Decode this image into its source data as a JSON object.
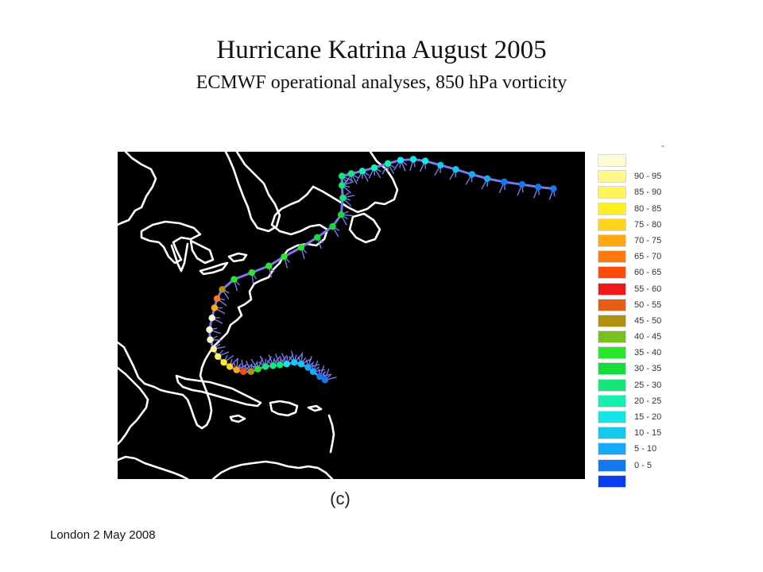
{
  "slide": {
    "title": "Hurricane Katrina August 2005",
    "subtitle": "ECMWF operational analyses, 850 hPa vorticity",
    "panel_label": "(c)",
    "footer": "London 2 May 2008"
  },
  "legend": {
    "top_mark": "-",
    "items": [
      {
        "label": "",
        "color": "#fffbd2"
      },
      {
        "label": "90 - 95",
        "color": "#fff88a"
      },
      {
        "label": "85 - 90",
        "color": "#fff45a"
      },
      {
        "label": "80 - 85",
        "color": "#ffee22"
      },
      {
        "label": "75 - 80",
        "color": "#ffd21c"
      },
      {
        "label": "70 - 75",
        "color": "#ffa812"
      },
      {
        "label": "65 - 70",
        "color": "#ff7a0e"
      },
      {
        "label": "60 - 65",
        "color": "#ff4a0c"
      },
      {
        "label": "55 - 60",
        "color": "#f21818"
      },
      {
        "label": "50 - 55",
        "color": "#e56014"
      },
      {
        "label": "45 - 50",
        "color": "#b09010"
      },
      {
        "label": "40 - 45",
        "color": "#78c020"
      },
      {
        "label": "35 - 40",
        "color": "#28e628"
      },
      {
        "label": "30 - 35",
        "color": "#14dc3c"
      },
      {
        "label": "25 - 30",
        "color": "#14e678"
      },
      {
        "label": "20 - 25",
        "color": "#14f0b4"
      },
      {
        "label": "15 - 20",
        "color": "#14e6e6"
      },
      {
        "label": "10 - 15",
        "color": "#14c8f0"
      },
      {
        "label": "5 - 10",
        "color": "#14aaf5"
      },
      {
        "label": "0 - 5",
        "color": "#1478f0"
      },
      {
        "label": "",
        "color": "#0a3cf0"
      }
    ]
  },
  "map": {
    "background": "#000000",
    "coastline_color": "#ffffff",
    "track_line_color": "#7878f0",
    "track": [
      {
        "lon": -75.6,
        "lat": 23.8,
        "color": "#1478f0"
      },
      {
        "lon": -76.2,
        "lat": 24.2,
        "color": "#1478f0"
      },
      {
        "lon": -77.0,
        "lat": 24.8,
        "color": "#14aaf5"
      },
      {
        "lon": -77.6,
        "lat": 25.3,
        "color": "#14aaf5"
      },
      {
        "lon": -78.4,
        "lat": 25.7,
        "color": "#14c8f0"
      },
      {
        "lon": -79.2,
        "lat": 25.9,
        "color": "#14c8f0"
      },
      {
        "lon": -80.1,
        "lat": 25.7,
        "color": "#14e6e6"
      },
      {
        "lon": -80.9,
        "lat": 25.6,
        "color": "#14e678"
      },
      {
        "lon": -81.7,
        "lat": 25.5,
        "color": "#14e678"
      },
      {
        "lon": -82.6,
        "lat": 25.4,
        "color": "#14e678"
      },
      {
        "lon": -83.5,
        "lat": 25.1,
        "color": "#28e628"
      },
      {
        "lon": -84.3,
        "lat": 24.8,
        "color": "#b09010"
      },
      {
        "lon": -85.2,
        "lat": 24.8,
        "color": "#ff4a0c"
      },
      {
        "lon": -86.0,
        "lat": 25.0,
        "color": "#ffa812"
      },
      {
        "lon": -86.8,
        "lat": 25.4,
        "color": "#ffd21c"
      },
      {
        "lon": -87.5,
        "lat": 25.9,
        "color": "#ffee22"
      },
      {
        "lon": -88.2,
        "lat": 26.6,
        "color": "#fff45a"
      },
      {
        "lon": -88.7,
        "lat": 27.5,
        "color": "#fff88a"
      },
      {
        "lon": -89.1,
        "lat": 28.6,
        "color": "#fffbd2"
      },
      {
        "lon": -89.2,
        "lat": 29.8,
        "color": "#fffbd2"
      },
      {
        "lon": -88.9,
        "lat": 31.2,
        "color": "#fffbd2"
      },
      {
        "lon": -88.6,
        "lat": 32.4,
        "color": "#ffa812"
      },
      {
        "lon": -88.3,
        "lat": 33.5,
        "color": "#ff7a0e"
      },
      {
        "lon": -87.7,
        "lat": 34.6,
        "color": "#b09010"
      },
      {
        "lon": -86.3,
        "lat": 35.8,
        "color": "#28e628"
      },
      {
        "lon": -84.2,
        "lat": 36.6,
        "color": "#28e628"
      },
      {
        "lon": -82.2,
        "lat": 37.4,
        "color": "#28e628"
      },
      {
        "lon": -80.4,
        "lat": 38.5,
        "color": "#28e628"
      },
      {
        "lon": -78.4,
        "lat": 39.6,
        "color": "#28e628"
      },
      {
        "lon": -76.5,
        "lat": 40.8,
        "color": "#14dc3c"
      },
      {
        "lon": -74.7,
        "lat": 42.1,
        "color": "#14dc3c"
      },
      {
        "lon": -73.7,
        "lat": 43.5,
        "color": "#14dc3c"
      },
      {
        "lon": -73.5,
        "lat": 45.5,
        "color": "#14e678"
      },
      {
        "lon": -73.6,
        "lat": 47.0,
        "color": "#14e678"
      },
      {
        "lon": -73.6,
        "lat": 48.1,
        "color": "#14e678"
      },
      {
        "lon": -72.5,
        "lat": 48.4,
        "color": "#14e678"
      },
      {
        "lon": -71.2,
        "lat": 48.7,
        "color": "#14f0b4"
      },
      {
        "lon": -69.8,
        "lat": 49.1,
        "color": "#14f0b4"
      },
      {
        "lon": -68.2,
        "lat": 49.6,
        "color": "#14f0b4"
      },
      {
        "lon": -66.7,
        "lat": 50.0,
        "color": "#14e6e6"
      },
      {
        "lon": -65.2,
        "lat": 50.1,
        "color": "#14e6e6"
      },
      {
        "lon": -63.8,
        "lat": 49.9,
        "color": "#14e6e6"
      },
      {
        "lon": -62.0,
        "lat": 49.4,
        "color": "#14c8f0"
      },
      {
        "lon": -60.2,
        "lat": 48.9,
        "color": "#14c8f0"
      },
      {
        "lon": -58.3,
        "lat": 48.3,
        "color": "#14aaf5"
      },
      {
        "lon": -56.5,
        "lat": 47.8,
        "color": "#14aaf5"
      },
      {
        "lon": -54.5,
        "lat": 47.4,
        "color": "#1478f0"
      },
      {
        "lon": -52.4,
        "lat": 47.1,
        "color": "#1478f0"
      },
      {
        "lon": -50.5,
        "lat": 46.8,
        "color": "#1478f0"
      },
      {
        "lon": -48.7,
        "lat": 46.6,
        "color": "#1478f0"
      }
    ]
  }
}
